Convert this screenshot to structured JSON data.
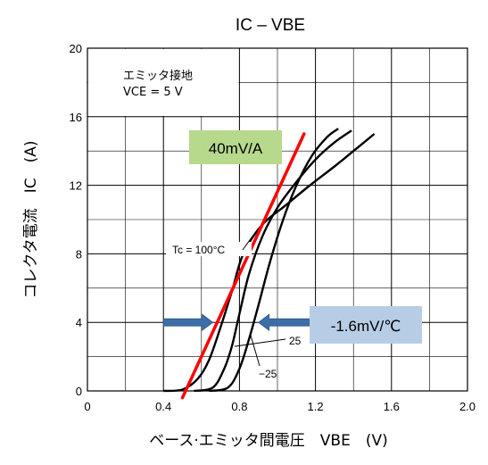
{
  "chart_data": {
    "type": "line",
    "title": "IC – VBE",
    "xlabel": "ベース·エミッタ間電圧　VBE　(V)",
    "ylabel": "コレクタ電流　IC　(A)",
    "xlim": [
      0,
      2.0
    ],
    "ylim": [
      0,
      20
    ],
    "xticks": [
      "0",
      "0.4",
      "0.8",
      "1.2",
      "1.6",
      "2.0"
    ],
    "yticks": [
      "0",
      "4",
      "8",
      "12",
      "16",
      "20"
    ],
    "xtick_values": [
      0,
      0.4,
      0.8,
      1.2,
      1.6,
      2.0
    ],
    "ytick_values": [
      0,
      4,
      8,
      12,
      16,
      20
    ],
    "grid": true,
    "conditions": [
      "エミッタ接地",
      "VCE = 5 V"
    ],
    "series": [
      {
        "label": "Tc = 100°C",
        "x": [
          0.4,
          0.5,
          0.58,
          0.64,
          0.7,
          0.76,
          0.82,
          0.92,
          1.04,
          1.16,
          1.3,
          1.4,
          1.51
        ],
        "y": [
          0,
          0.08,
          0.7,
          1.8,
          3.7,
          5.8,
          8.0,
          9.7,
          10.8,
          11.9,
          13.1,
          14.0,
          15.0
        ]
      },
      {
        "label": "25",
        "x": [
          0.56,
          0.66,
          0.72,
          0.76,
          0.8,
          0.85,
          0.92,
          1.0,
          1.1,
          1.2,
          1.3,
          1.39
        ],
        "y": [
          0,
          0.2,
          1.3,
          2.6,
          4.5,
          6.8,
          9.0,
          10.7,
          12.2,
          13.5,
          14.5,
          15.2
        ]
      },
      {
        "label": "−25",
        "x": [
          0.64,
          0.74,
          0.8,
          0.85,
          0.9,
          0.96,
          1.03,
          1.1,
          1.18,
          1.26,
          1.32
        ],
        "y": [
          0,
          0.2,
          1.3,
          3.0,
          5.0,
          7.5,
          10.0,
          12.0,
          13.7,
          14.8,
          15.3
        ]
      }
    ],
    "annotations": [
      {
        "text": "40mV/A",
        "line_color": "#ff0000",
        "box_color": "#b7d98c",
        "line_x": [
          0.5,
          1.14
        ],
        "line_y": [
          -0.4,
          15.0
        ]
      },
      {
        "text": "-1.6mV/℃",
        "box_color": "#b7cde6",
        "arrow_color": "#3c6ea8",
        "shift_at_ic": 4,
        "from_x": [
          0.4,
          1.17
        ],
        "to_x": [
          0.66,
          0.9
        ]
      }
    ]
  }
}
